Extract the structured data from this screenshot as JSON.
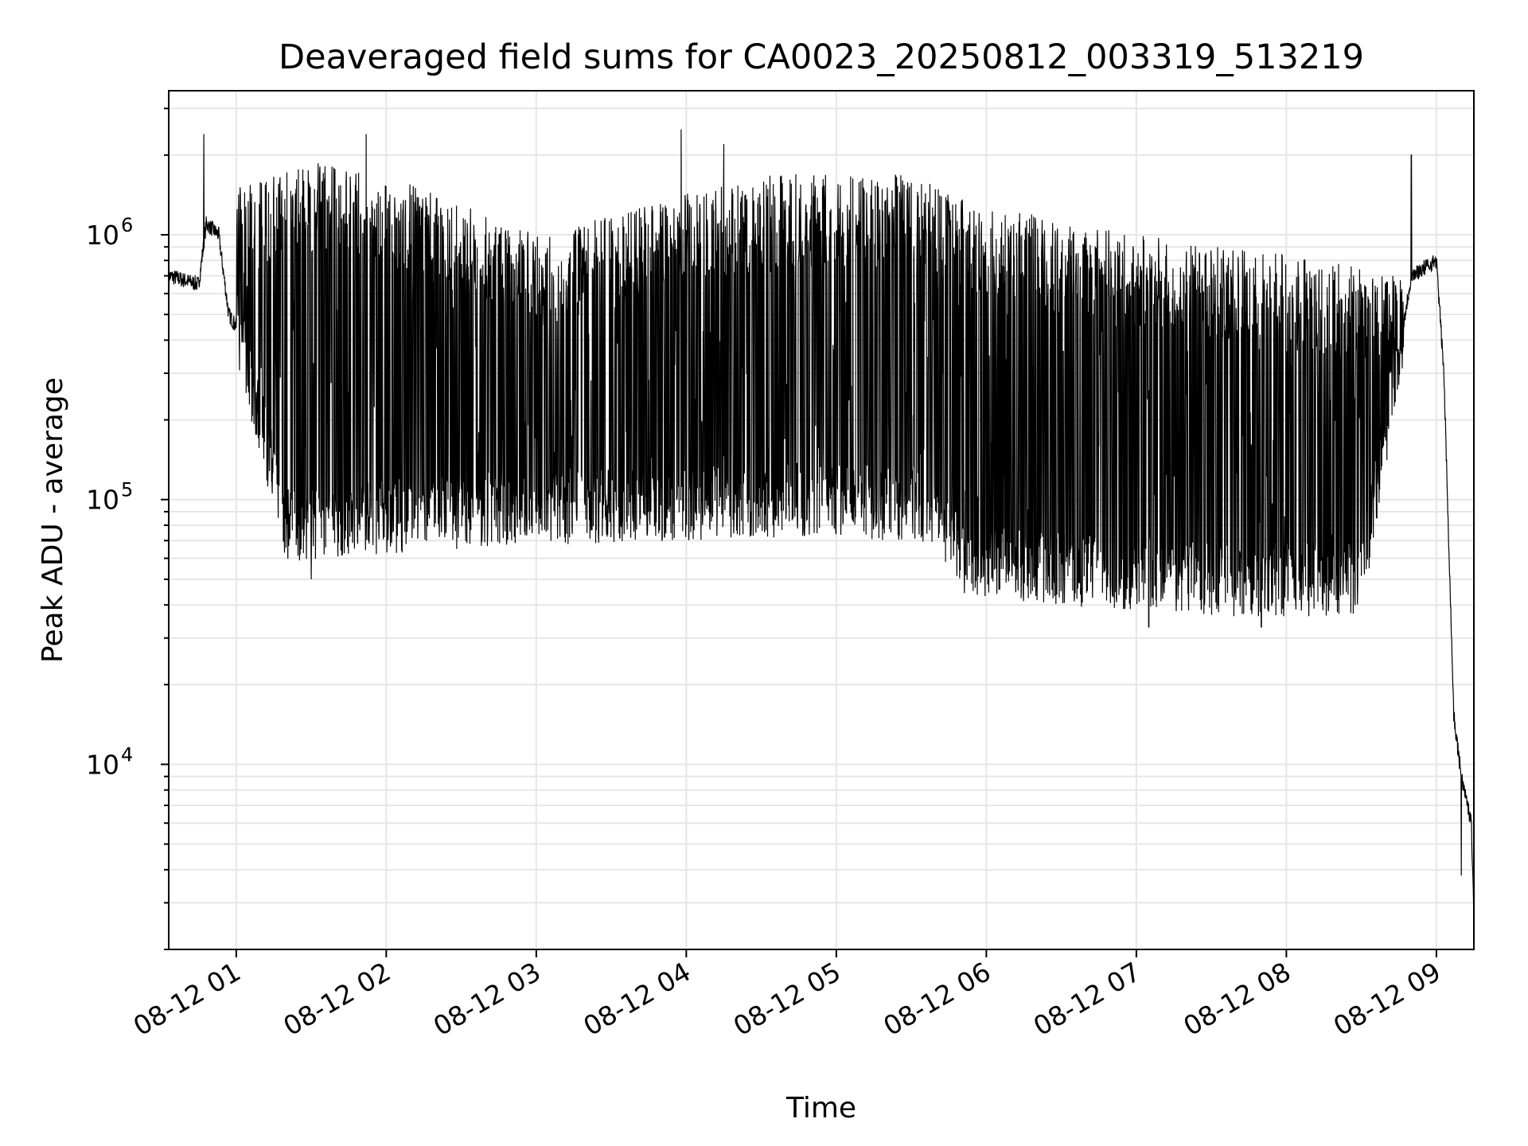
{
  "chart_data": {
    "type": "line",
    "title": "Deaveraged field sums for CA0023_20250812_003319_513219",
    "xlabel": "Time",
    "ylabel": "Peak ADU - average",
    "yscale": "log",
    "grid": true,
    "xlim": [
      "2025-08-12 00:33",
      "2025-08-12 09:15"
    ],
    "ylim": [
      2000,
      3500000
    ],
    "x_ticks": [
      "08-12 01",
      "08-12 02",
      "08-12 03",
      "08-12 04",
      "08-12 05",
      "08-12 06",
      "08-12 07",
      "08-12 08",
      "08-12 09"
    ],
    "y_ticks": [
      {
        "value": 10000,
        "base": "10",
        "exp": "4"
      },
      {
        "value": 100000,
        "base": "10",
        "exp": "5"
      },
      {
        "value": 1000000,
        "base": "10",
        "exp": "6"
      }
    ],
    "line_color": "#000000",
    "grid_color": "#e6e6e6",
    "series": [
      {
        "description_of_shape": "dense oscillating signal",
        "baseline": [
          [
            "2025-08-12 00:33",
            700000
          ],
          [
            "2025-08-12 00:45",
            650000
          ],
          [
            "2025-08-12 00:48",
            1100000
          ],
          [
            "2025-08-12 00:53",
            1000000
          ],
          [
            "2025-08-12 00:57",
            500000
          ],
          [
            "2025-08-12 01:00",
            450000
          ],
          [
            "2025-08-12 01:05",
            300000
          ],
          [
            "2025-08-12 01:20",
            80000
          ],
          [
            "2025-08-12 01:50",
            85000
          ],
          [
            "2025-08-12 02:30",
            90000
          ],
          [
            "2025-08-12 03:30",
            95000
          ],
          [
            "2025-08-12 04:50",
            100000
          ],
          [
            "2025-08-12 05:40",
            95000
          ],
          [
            "2025-08-12 05:50",
            60000
          ],
          [
            "2025-08-12 06:30",
            55000
          ],
          [
            "2025-08-12 07:30",
            50000
          ],
          [
            "2025-08-12 08:30",
            50000
          ],
          [
            "2025-08-12 08:50",
            700000
          ],
          [
            "2025-08-12 09:00",
            800000
          ],
          [
            "2025-08-12 09:03",
            300000
          ],
          [
            "2025-08-12 09:07",
            15000
          ],
          [
            "2025-08-12 09:10",
            9000
          ],
          [
            "2025-08-12 09:14",
            6000
          ],
          [
            "2025-08-12 09:15",
            2700
          ]
        ],
        "upper_envelope": [
          [
            "2025-08-12 01:00",
            1500000
          ],
          [
            "2025-08-12 01:30",
            1900000
          ],
          [
            "2025-08-12 02:00",
            1700000
          ],
          [
            "2025-08-12 03:00",
            1000000
          ],
          [
            "2025-08-12 04:30",
            1700000
          ],
          [
            "2025-08-12 05:30",
            1700000
          ],
          [
            "2025-08-12 06:00",
            1300000
          ],
          [
            "2025-08-12 07:00",
            1000000
          ],
          [
            "2025-08-12 08:00",
            850000
          ],
          [
            "2025-08-12 08:45",
            700000
          ]
        ],
        "spikes": [
          [
            "2025-08-12 00:47",
            2400000
          ],
          [
            "2025-08-12 01:52",
            2400000
          ],
          [
            "2025-08-12 03:58",
            2500000
          ],
          [
            "2025-08-12 04:15",
            2200000
          ],
          [
            "2025-08-12 08:50",
            2000000
          ]
        ],
        "minimum_dips": [
          [
            "2025-08-12 01:30",
            50000
          ],
          [
            "2025-08-12 07:05",
            33000
          ],
          [
            "2025-08-12 07:50",
            33000
          ],
          [
            "2025-08-12 09:10",
            3800
          ]
        ]
      }
    ]
  }
}
